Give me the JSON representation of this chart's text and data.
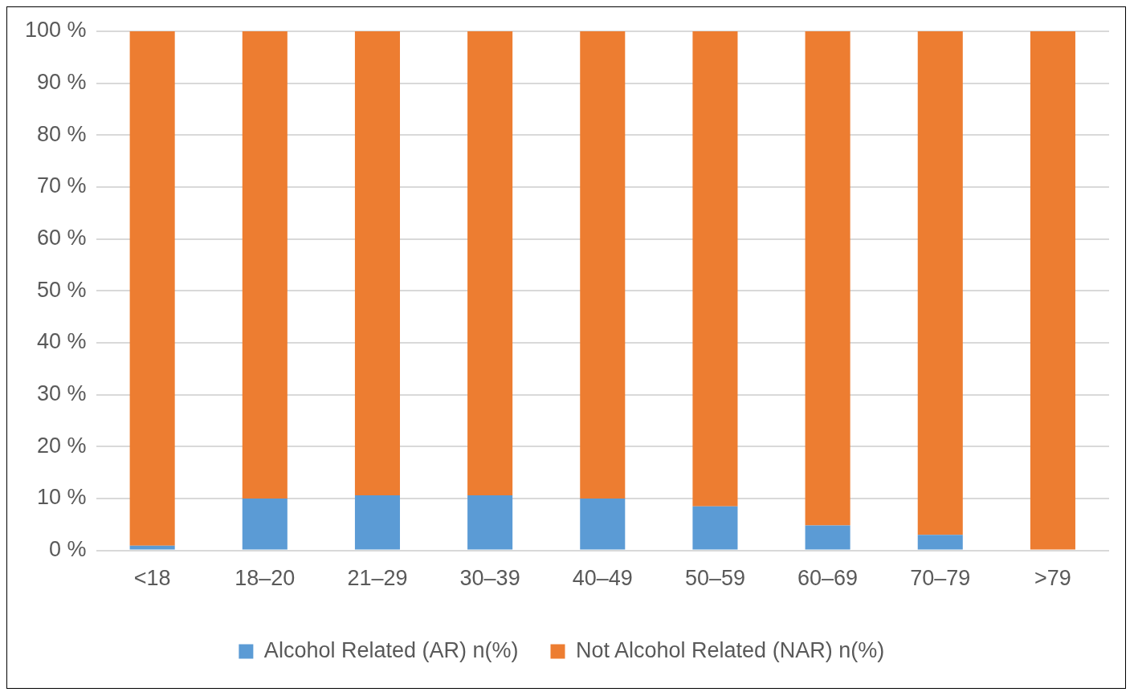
{
  "chart_data": {
    "type": "bar",
    "stacked": true,
    "categories": [
      "<18",
      "18–20",
      "21–29",
      "30–39",
      "40–49",
      "50–59",
      "60–69",
      "70–79",
      ">79"
    ],
    "series": [
      {
        "name": "Alcohol Related (AR) n(%)",
        "color": "#5b9bd5",
        "values": [
          0.9,
          10,
          10.6,
          10.6,
          10,
          8.5,
          4.8,
          3.0,
          0
        ]
      },
      {
        "name": "Not Alcohol Related (NAR) n(%)",
        "color": "#ed7d31",
        "values": [
          99.1,
          90,
          89.4,
          89.4,
          90,
          91.5,
          95.2,
          97,
          100
        ]
      }
    ],
    "ylim": [
      0,
      100
    ],
    "yticks": [
      {
        "value": 0,
        "label": "0 %"
      },
      {
        "value": 10,
        "label": "10 %"
      },
      {
        "value": 20,
        "label": "20 %"
      },
      {
        "value": 30,
        "label": "30 %"
      },
      {
        "value": 40,
        "label": "40 %"
      },
      {
        "value": 50,
        "label": "50 %"
      },
      {
        "value": 60,
        "label": "60 %"
      },
      {
        "value": 70,
        "label": "70 %"
      },
      {
        "value": 80,
        "label": "80 %"
      },
      {
        "value": 90,
        "label": "90 %"
      },
      {
        "value": 100,
        "label": "100 %"
      }
    ],
    "grid": "y",
    "legend": "bottom"
  }
}
